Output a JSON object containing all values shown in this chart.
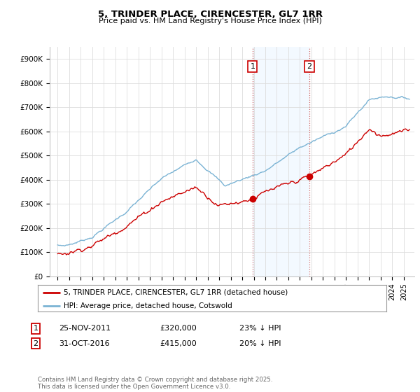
{
  "title": "5, TRINDER PLACE, CIRENCESTER, GL7 1RR",
  "subtitle": "Price paid vs. HM Land Registry's House Price Index (HPI)",
  "ylim": [
    0,
    950000
  ],
  "yticks": [
    0,
    100000,
    200000,
    300000,
    400000,
    500000,
    600000,
    700000,
    800000,
    900000
  ],
  "ytick_labels": [
    "£0",
    "£100K",
    "£200K",
    "£300K",
    "£400K",
    "£500K",
    "£600K",
    "£700K",
    "£800K",
    "£900K"
  ],
  "hpi_color": "#7ab3d4",
  "price_color": "#cc0000",
  "sale1_date_num": 2011.9,
  "sale1_price": 320000,
  "sale1_label": "1",
  "sale2_date_num": 2016.83,
  "sale2_price": 415000,
  "sale2_label": "2",
  "shade_color": "#ddeeff",
  "vline_color": "#cc6666",
  "annotation_box_color": "#cc0000",
  "legend_line1": "5, TRINDER PLACE, CIRENCESTER, GL7 1RR (detached house)",
  "legend_line2": "HPI: Average price, detached house, Cotswold",
  "table_row1": [
    "1",
    "25-NOV-2011",
    "£320,000",
    "23% ↓ HPI"
  ],
  "table_row2": [
    "2",
    "31-OCT-2016",
    "£415,000",
    "20% ↓ HPI"
  ],
  "footer": "Contains HM Land Registry data © Crown copyright and database right 2025.\nThis data is licensed under the Open Government Licence v3.0.",
  "background_color": "#ffffff",
  "grid_color": "#dddddd",
  "xlim_left": 1994.3,
  "xlim_right": 2025.9
}
